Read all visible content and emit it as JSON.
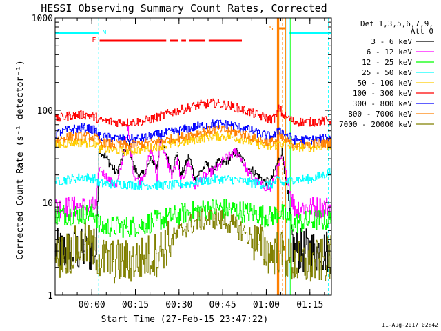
{
  "chart_data": {
    "type": "line",
    "title": "HESSI Observing Summary Count Rates, Corrected",
    "xlabel": "Start Time (27-Feb-15 23:47:22)",
    "ylabel": "Corrected Count Rate (s⁻¹ detector⁻¹)",
    "yscale": "log",
    "ylim": [
      1,
      1000
    ],
    "xlim_minutes": [
      0,
      95
    ],
    "x_ticks": [
      {
        "label": "00:00",
        "minute": 12.6
      },
      {
        "label": "00:15",
        "minute": 27.6
      },
      {
        "label": "00:30",
        "minute": 42.6
      },
      {
        "label": "00:45",
        "minute": 57.6
      },
      {
        "label": "01:00",
        "minute": 72.6
      },
      {
        "label": "01:15",
        "minute": 87.6
      }
    ],
    "y_ticks": [
      {
        "label": "1",
        "value": 1
      },
      {
        "label": "10",
        "value": 10
      },
      {
        "label": "100",
        "value": 100
      },
      {
        "label": "1000",
        "value": 1000
      }
    ],
    "legend_header": [
      "Det 1,3,5,6,7,9,",
      "Att 0"
    ],
    "legend_placement": "right",
    "series": [
      {
        "name": "3 - 6 keV",
        "color": "#000000",
        "points": [
          [
            0,
            3
          ],
          [
            10,
            3
          ],
          [
            14,
            3
          ],
          [
            15,
            38
          ],
          [
            17,
            32
          ],
          [
            19,
            26
          ],
          [
            21,
            21
          ],
          [
            23,
            30
          ],
          [
            25,
            48
          ],
          [
            27,
            24
          ],
          [
            29,
            19
          ],
          [
            31,
            22
          ],
          [
            33,
            30
          ],
          [
            35,
            24
          ],
          [
            36,
            48
          ],
          [
            38,
            34
          ],
          [
            40,
            22
          ],
          [
            42,
            35
          ],
          [
            43,
            19
          ],
          [
            46,
            32
          ],
          [
            48,
            18
          ],
          [
            50,
            22
          ],
          [
            52,
            26
          ],
          [
            54,
            22
          ],
          [
            56,
            27
          ],
          [
            58,
            27
          ],
          [
            60,
            30
          ],
          [
            62,
            36
          ],
          [
            64,
            30
          ],
          [
            66,
            24
          ],
          [
            68,
            22
          ],
          [
            70,
            19
          ],
          [
            72,
            17
          ],
          [
            74,
            17
          ],
          [
            76,
            25
          ],
          [
            78,
            37
          ],
          [
            82,
            3
          ],
          [
            90,
            3
          ],
          [
            95,
            3
          ]
        ]
      },
      {
        "name": "6 - 12 keV",
        "color": "#ff00ff",
        "points": [
          [
            0,
            9
          ],
          [
            10,
            9
          ],
          [
            14,
            9
          ],
          [
            15,
            24
          ],
          [
            17,
            20
          ],
          [
            19,
            17
          ],
          [
            21,
            15
          ],
          [
            23,
            28
          ],
          [
            25,
            62
          ],
          [
            27,
            20
          ],
          [
            29,
            17
          ],
          [
            31,
            22
          ],
          [
            33,
            40
          ],
          [
            35,
            18
          ],
          [
            36,
            53
          ],
          [
            38,
            30
          ],
          [
            40,
            20
          ],
          [
            42,
            28
          ],
          [
            43,
            16
          ],
          [
            46,
            28
          ],
          [
            48,
            15
          ],
          [
            50,
            18
          ],
          [
            52,
            20
          ],
          [
            54,
            22
          ],
          [
            56,
            24
          ],
          [
            58,
            30
          ],
          [
            60,
            32
          ],
          [
            62,
            36
          ],
          [
            64,
            30
          ],
          [
            66,
            22
          ],
          [
            68,
            18
          ],
          [
            70,
            16
          ],
          [
            72,
            15
          ],
          [
            74,
            14
          ],
          [
            76,
            22
          ],
          [
            78,
            30
          ],
          [
            82,
            9
          ],
          [
            90,
            9
          ],
          [
            95,
            9
          ]
        ]
      },
      {
        "name": "12 - 25 keV",
        "color": "#00ff00",
        "points": [
          [
            0,
            7.5
          ],
          [
            10,
            7.5
          ],
          [
            14,
            7.5
          ],
          [
            15,
            5.5
          ],
          [
            25,
            5.5
          ],
          [
            30,
            5.8
          ],
          [
            35,
            6.5
          ],
          [
            40,
            7
          ],
          [
            45,
            7.8
          ],
          [
            50,
            8.3
          ],
          [
            55,
            8.8
          ],
          [
            60,
            8.5
          ],
          [
            65,
            8
          ],
          [
            70,
            7.5
          ],
          [
            74,
            7
          ],
          [
            77,
            8
          ],
          [
            78,
            7.5
          ],
          [
            82,
            6
          ],
          [
            90,
            6.5
          ],
          [
            95,
            6.5
          ]
        ]
      },
      {
        "name": "25 - 50 keV",
        "color": "#00ffff",
        "points": [
          [
            0,
            17
          ],
          [
            5,
            18
          ],
          [
            10,
            19
          ],
          [
            14,
            18
          ],
          [
            15,
            16
          ],
          [
            20,
            16
          ],
          [
            30,
            15.5
          ],
          [
            40,
            15.5
          ],
          [
            45,
            16
          ],
          [
            50,
            17
          ],
          [
            55,
            18
          ],
          [
            60,
            18
          ],
          [
            65,
            17
          ],
          [
            70,
            16
          ],
          [
            74,
            15.5
          ],
          [
            76,
            17
          ],
          [
            77,
            18
          ],
          [
            78,
            16
          ],
          [
            82,
            18
          ],
          [
            88,
            18
          ],
          [
            92,
            20
          ],
          [
            95,
            22
          ]
        ]
      },
      {
        "name": "50 - 100 keV",
        "color": "#ffcc00",
        "points": [
          [
            0,
            42
          ],
          [
            5,
            45
          ],
          [
            10,
            45
          ],
          [
            14,
            44
          ],
          [
            15,
            39
          ],
          [
            20,
            37
          ],
          [
            25,
            36
          ],
          [
            30,
            38
          ],
          [
            35,
            41
          ],
          [
            40,
            43
          ],
          [
            45,
            46
          ],
          [
            50,
            50
          ],
          [
            55,
            53
          ],
          [
            60,
            52
          ],
          [
            65,
            48
          ],
          [
            70,
            43
          ],
          [
            74,
            40
          ],
          [
            76,
            42
          ],
          [
            77,
            45
          ],
          [
            78,
            43
          ],
          [
            82,
            40
          ],
          [
            88,
            40
          ],
          [
            95,
            42
          ]
        ]
      },
      {
        "name": "100 - 300 keV",
        "color": "#ff0000",
        "points": [
          [
            0,
            80
          ],
          [
            5,
            88
          ],
          [
            10,
            90
          ],
          [
            14,
            84
          ],
          [
            15,
            78
          ],
          [
            20,
            75
          ],
          [
            25,
            74
          ],
          [
            30,
            76
          ],
          [
            35,
            84
          ],
          [
            40,
            95
          ],
          [
            45,
            105
          ],
          [
            50,
            115
          ],
          [
            55,
            120
          ],
          [
            60,
            112
          ],
          [
            65,
            100
          ],
          [
            70,
            88
          ],
          [
            74,
            80
          ],
          [
            76,
            85
          ],
          [
            77,
            110
          ],
          [
            78,
            90
          ],
          [
            82,
            75
          ],
          [
            88,
            75
          ],
          [
            95,
            78
          ]
        ]
      },
      {
        "name": "300 - 800 keV",
        "color": "#0000ff",
        "points": [
          [
            0,
            56
          ],
          [
            5,
            62
          ],
          [
            10,
            65
          ],
          [
            14,
            60
          ],
          [
            15,
            52
          ],
          [
            20,
            50
          ],
          [
            25,
            48
          ],
          [
            30,
            50
          ],
          [
            35,
            54
          ],
          [
            40,
            58
          ],
          [
            45,
            63
          ],
          [
            50,
            68
          ],
          [
            55,
            72
          ],
          [
            60,
            70
          ],
          [
            65,
            64
          ],
          [
            70,
            56
          ],
          [
            74,
            52
          ],
          [
            76,
            55
          ],
          [
            77,
            65
          ],
          [
            78,
            58
          ],
          [
            82,
            48
          ],
          [
            88,
            48
          ],
          [
            95,
            50
          ]
        ]
      },
      {
        "name": "800 - 7000 keV",
        "color": "#ff8000",
        "points": [
          [
            0,
            48
          ],
          [
            5,
            52
          ],
          [
            10,
            52
          ],
          [
            14,
            50
          ],
          [
            15,
            45
          ],
          [
            20,
            43
          ],
          [
            25,
            42
          ],
          [
            30,
            43
          ],
          [
            35,
            46
          ],
          [
            40,
            49
          ],
          [
            45,
            53
          ],
          [
            50,
            58
          ],
          [
            55,
            62
          ],
          [
            60,
            60
          ],
          [
            65,
            55
          ],
          [
            70,
            48
          ],
          [
            74,
            45
          ],
          [
            76,
            47
          ],
          [
            77,
            52
          ],
          [
            78,
            49
          ],
          [
            82,
            43
          ],
          [
            88,
            43
          ],
          [
            95,
            45
          ]
        ]
      },
      {
        "name": "7000 - 20000 keV",
        "color": "#808000",
        "points": [
          [
            0,
            2.5
          ],
          [
            5,
            3
          ],
          [
            10,
            3.5
          ],
          [
            14,
            3
          ],
          [
            15,
            2.5
          ],
          [
            20,
            2.3
          ],
          [
            25,
            2.3
          ],
          [
            30,
            2.5
          ],
          [
            35,
            2.8
          ],
          [
            38,
            3.5
          ],
          [
            42,
            4.5
          ],
          [
            45,
            5.5
          ],
          [
            50,
            6.5
          ],
          [
            55,
            6.8
          ],
          [
            60,
            6
          ],
          [
            65,
            4.8
          ],
          [
            70,
            3.5
          ],
          [
            74,
            2.8
          ],
          [
            77,
            3
          ],
          [
            78,
            2.7
          ],
          [
            82,
            2.2
          ],
          [
            88,
            2.2
          ],
          [
            95,
            2.5
          ]
        ]
      }
    ],
    "annotations": [
      {
        "text": "N",
        "color": "#00ffff",
        "minute": 15
      },
      {
        "text": "F",
        "color": "#ff0000",
        "minute": 15
      },
      {
        "text": "S",
        "color": "#ff8000",
        "minute": 76
      }
    ],
    "night_intervals_minutes": [
      [
        0,
        15
      ],
      [
        80.5,
        95
      ]
    ],
    "flare_segments_minutes": [
      [
        15.3,
        38.2
      ],
      [
        39.5,
        42.3
      ],
      [
        43.4,
        45.0
      ],
      [
        46.0,
        51.6
      ],
      [
        52.8,
        64.2
      ]
    ],
    "saa_interval_minutes": [
      76.9,
      79.2
    ],
    "vertical_markers_minutes": [
      {
        "minute": 15.0,
        "color": "#00ffff",
        "dashed": true
      },
      {
        "minute": 76.4,
        "color": "#ff8000",
        "dashed": false
      },
      {
        "minute": 76.9,
        "color": "#ff8000",
        "dashed": false
      },
      {
        "minute": 78.2,
        "color": "#ff8000",
        "dashed": true
      },
      {
        "minute": 79.2,
        "color": "#ff8000",
        "dashed": false
      },
      {
        "minute": 79.7,
        "color": "#00ffff",
        "dashed": false
      },
      {
        "minute": 80.5,
        "color": "#00ffff",
        "dashed": false
      },
      {
        "minute": 81.0,
        "color": "#00ff00",
        "dashed": false
      },
      {
        "minute": 94.0,
        "color": "#00ffff",
        "dashed": true
      }
    ]
  },
  "footer": {
    "timestamp": "11-Aug-2017 02:42"
  }
}
